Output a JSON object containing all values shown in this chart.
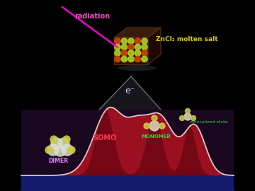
{
  "bg_color": "#000000",
  "radiation_label": "radiation",
  "radiation_color": "#ff44cc",
  "znCl2_label": "ZnCl₂ molten salt",
  "znCl2_label_color": "#ddcc00",
  "electron_label": "e⁻",
  "electron_color": "#ccddff",
  "somo_label": "SOMO",
  "somo_color": "#ff3355",
  "dimer_label": "DIMER",
  "dimer_color": "#dd88ff",
  "monomer_label": "MONOMER",
  "monomer_color": "#44cc44",
  "delocalized_label": "delocalized state",
  "delocalized_color": "#44cc44",
  "cone_color": "#aaaacc",
  "cone_alpha": 0.15,
  "landscape_fill": "#aa1122",
  "landscape_edge": "#ffffff",
  "floor_color": "#180828",
  "floor_blue": "#1122bb"
}
